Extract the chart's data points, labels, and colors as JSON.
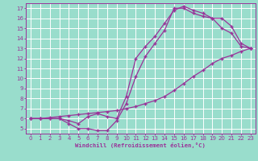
{
  "xlabel": "Windchill (Refroidissement éolien,°C)",
  "bg_color": "#99ddcc",
  "line_color": "#993399",
  "grid_color": "#ffffff",
  "xlim": [
    -0.5,
    23.5
  ],
  "ylim": [
    4.5,
    17.5
  ],
  "xticks": [
    0,
    1,
    2,
    3,
    4,
    5,
    6,
    7,
    8,
    9,
    10,
    11,
    12,
    13,
    14,
    15,
    16,
    17,
    18,
    19,
    20,
    21,
    22,
    23
  ],
  "yticks": [
    5,
    6,
    7,
    8,
    9,
    10,
    11,
    12,
    13,
    14,
    15,
    16,
    17
  ],
  "line1_x": [
    0,
    1,
    2,
    3,
    4,
    5,
    6,
    7,
    8,
    9,
    10,
    11,
    12,
    13,
    14,
    15,
    16,
    17,
    18,
    19,
    20,
    21,
    22,
    23
  ],
  "line1_y": [
    6.0,
    6.0,
    6.0,
    6.0,
    5.5,
    5.0,
    5.0,
    4.8,
    4.8,
    5.8,
    7.5,
    10.2,
    12.2,
    13.5,
    14.8,
    17.0,
    17.0,
    16.5,
    16.2,
    16.0,
    15.0,
    14.5,
    13.2,
    13.0
  ],
  "line2_x": [
    0,
    1,
    2,
    3,
    4,
    5,
    6,
    7,
    8,
    9,
    10,
    11,
    12,
    13,
    14,
    15,
    16,
    17,
    18,
    19,
    20,
    21,
    22,
    23
  ],
  "line2_y": [
    6.0,
    6.0,
    6.0,
    6.0,
    5.8,
    5.5,
    6.2,
    6.5,
    6.2,
    6.0,
    8.2,
    12.0,
    13.2,
    14.2,
    15.5,
    16.8,
    17.2,
    16.8,
    16.5,
    16.0,
    16.0,
    15.2,
    13.5,
    13.0
  ],
  "line3_x": [
    0,
    1,
    2,
    3,
    4,
    5,
    6,
    7,
    8,
    9,
    10,
    11,
    12,
    13,
    14,
    15,
    16,
    17,
    18,
    19,
    20,
    21,
    22,
    23
  ],
  "line3_y": [
    6.0,
    6.0,
    6.1,
    6.2,
    6.3,
    6.4,
    6.5,
    6.6,
    6.7,
    6.8,
    7.0,
    7.2,
    7.5,
    7.8,
    8.2,
    8.8,
    9.5,
    10.2,
    10.8,
    11.5,
    12.0,
    12.3,
    12.7,
    13.0
  ]
}
